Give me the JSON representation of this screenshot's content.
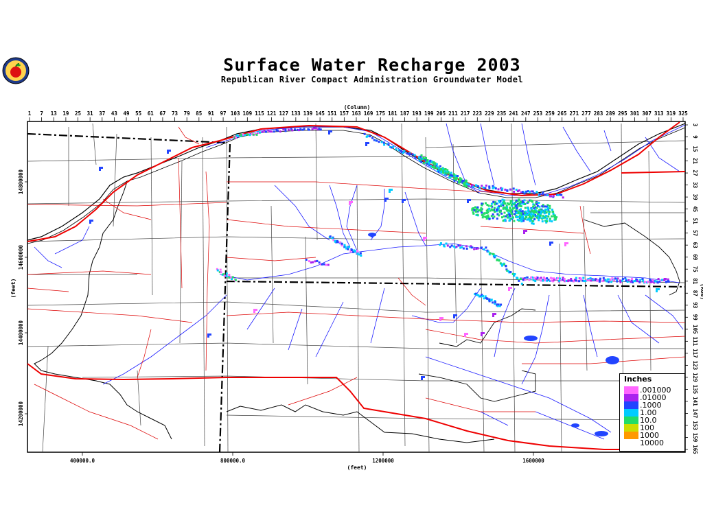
{
  "title": "Surface Water Recharge 2003",
  "subtitle": "Republican River Compact Administration Groundwater Model",
  "top_axis": {
    "label": "(Column)",
    "ticks": [
      "1",
      "7",
      "13",
      "19",
      "25",
      "31",
      "37",
      "43",
      "49",
      "55",
      "61",
      "67",
      "73",
      "79",
      "85",
      "91",
      "97",
      "103",
      "109",
      "115",
      "121",
      "127",
      "133",
      "139",
      "145",
      "151",
      "157",
      "163",
      "169",
      "175",
      "181",
      "187",
      "193",
      "199",
      "205",
      "211",
      "217",
      "223",
      "229",
      "235",
      "241",
      "247",
      "253",
      "259",
      "265",
      "271",
      "277",
      "283",
      "289",
      "295",
      "301",
      "307",
      "313",
      "319",
      "325"
    ]
  },
  "right_axis": {
    "label": "(Row)",
    "ticks": [
      "3",
      "9",
      "15",
      "21",
      "27",
      "33",
      "39",
      "45",
      "51",
      "57",
      "63",
      "69",
      "75",
      "81",
      "87",
      "93",
      "99",
      "105",
      "111",
      "117",
      "123",
      "129",
      "135",
      "141",
      "147",
      "153",
      "159",
      "165"
    ]
  },
  "bottom_axis": {
    "label": "(feet)",
    "ticks": [
      "400000.0",
      "800000.0",
      "1200000",
      "1600000"
    ]
  },
  "left_axis": {
    "label": "(feet)",
    "ticks": [
      "14800000",
      "14600000",
      "14400000",
      "14200000"
    ]
  },
  "legend": {
    "title": "Inches",
    "entries": [
      {
        "label": ".001000",
        "color": "#ff66ff"
      },
      {
        "label": ".01000",
        "color": "#aa22ee"
      },
      {
        "label": ".1000",
        "color": "#2244ff"
      },
      {
        "label": "1.00",
        "color": "#00ccff"
      },
      {
        "label": "10.0",
        "color": "#22dd66"
      },
      {
        "label": "100",
        "color": "#ccdd00"
      },
      {
        "label": "1000",
        "color": "#ff9900"
      },
      {
        "label": "10000",
        "color": "#ffffff"
      }
    ]
  },
  "colors": {
    "rivers": "#1a1aff",
    "roads": "#dd0000",
    "major_roads": "#ee0000",
    "boundaries": "#000000"
  }
}
